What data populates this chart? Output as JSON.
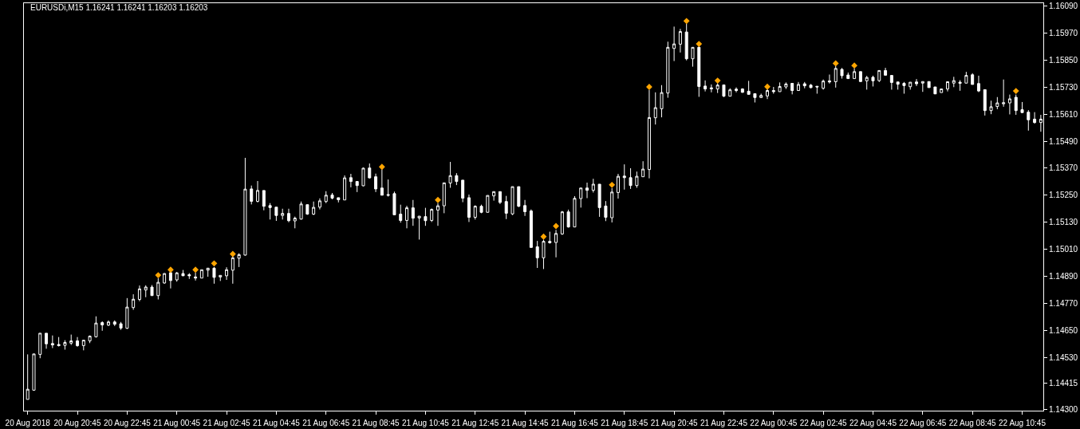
{
  "chart_data": {
    "type": "candlestick",
    "title": "EURUSDi,M15 1.16241 1.16241 1.16203 1.16203",
    "color": "#ffffff",
    "x": [
      "2018-08-20T18:45",
      "2018-08-20T19:00",
      "2018-08-20T19:15",
      "2018-08-20T19:30",
      "2018-08-20T19:45",
      "2018-08-20T20:00",
      "2018-08-20T20:15",
      "2018-08-20T20:30",
      "2018-08-20T20:45",
      "2018-08-20T21:00",
      "2018-08-20T21:15",
      "2018-08-20T21:30",
      "2018-08-20T21:45",
      "2018-08-20T22:00",
      "2018-08-20T22:15",
      "2018-08-20T22:30",
      "2018-08-20T22:45",
      "2018-08-20T23:00",
      "2018-08-20T23:15",
      "2018-08-20T23:30",
      "2018-08-20T23:45",
      "2018-08-21T00:00",
      "2018-08-21T00:15",
      "2018-08-21T00:30",
      "2018-08-21T00:45",
      "2018-08-21T01:00",
      "2018-08-21T01:15",
      "2018-08-21T01:30",
      "2018-08-21T01:45",
      "2018-08-21T02:00",
      "2018-08-21T02:15",
      "2018-08-21T02:30",
      "2018-08-21T02:45",
      "2018-08-21T03:00",
      "2018-08-21T03:15",
      "2018-08-21T03:30",
      "2018-08-21T03:45",
      "2018-08-21T04:00",
      "2018-08-21T04:15",
      "2018-08-21T04:30",
      "2018-08-21T04:45",
      "2018-08-21T05:00",
      "2018-08-21T05:15",
      "2018-08-21T05:30",
      "2018-08-21T05:45",
      "2018-08-21T06:00",
      "2018-08-21T06:15",
      "2018-08-21T06:30",
      "2018-08-21T06:45",
      "2018-08-21T07:00",
      "2018-08-21T07:15",
      "2018-08-21T07:30",
      "2018-08-21T07:45",
      "2018-08-21T08:00",
      "2018-08-21T08:15",
      "2018-08-21T08:30",
      "2018-08-21T08:45",
      "2018-08-21T09:00",
      "2018-08-21T09:15",
      "2018-08-21T09:30",
      "2018-08-21T09:45",
      "2018-08-21T10:00",
      "2018-08-21T10:15",
      "2018-08-21T10:30",
      "2018-08-21T10:45",
      "2018-08-21T11:00",
      "2018-08-21T11:15",
      "2018-08-21T11:30",
      "2018-08-21T11:45",
      "2018-08-21T12:00",
      "2018-08-21T12:15",
      "2018-08-21T12:30",
      "2018-08-21T12:45",
      "2018-08-21T13:00",
      "2018-08-21T13:15",
      "2018-08-21T13:30",
      "2018-08-21T13:45",
      "2018-08-21T14:00",
      "2018-08-21T14:15",
      "2018-08-21T14:30",
      "2018-08-21T14:45",
      "2018-08-21T15:00",
      "2018-08-21T15:15",
      "2018-08-21T15:30",
      "2018-08-21T15:45",
      "2018-08-21T16:00",
      "2018-08-21T16:15",
      "2018-08-21T16:30",
      "2018-08-21T16:45",
      "2018-08-21T17:00",
      "2018-08-21T17:15",
      "2018-08-21T17:30",
      "2018-08-21T17:45",
      "2018-08-21T18:00",
      "2018-08-21T18:15",
      "2018-08-21T18:30",
      "2018-08-21T18:45",
      "2018-08-21T19:00",
      "2018-08-21T19:15",
      "2018-08-21T19:30",
      "2018-08-21T19:45",
      "2018-08-21T20:00",
      "2018-08-21T20:15",
      "2018-08-21T20:30",
      "2018-08-21T20:45",
      "2018-08-21T21:00",
      "2018-08-21T21:15",
      "2018-08-21T21:30",
      "2018-08-21T21:45",
      "2018-08-21T22:00",
      "2018-08-21T22:15",
      "2018-08-21T22:30",
      "2018-08-21T22:45",
      "2018-08-21T23:00",
      "2018-08-21T23:15",
      "2018-08-21T23:30",
      "2018-08-21T23:45",
      "2018-08-22T00:00",
      "2018-08-22T00:15",
      "2018-08-22T00:30",
      "2018-08-22T00:45",
      "2018-08-22T01:00",
      "2018-08-22T01:15",
      "2018-08-22T01:30",
      "2018-08-22T01:45",
      "2018-08-22T02:00",
      "2018-08-22T02:15",
      "2018-08-22T02:30",
      "2018-08-22T02:45",
      "2018-08-22T03:00",
      "2018-08-22T03:15",
      "2018-08-22T03:30",
      "2018-08-22T03:45",
      "2018-08-22T04:00",
      "2018-08-22T04:15",
      "2018-08-22T04:30",
      "2018-08-22T04:45",
      "2018-08-22T05:00",
      "2018-08-22T05:15",
      "2018-08-22T05:30",
      "2018-08-22T05:45",
      "2018-08-22T06:00",
      "2018-08-22T06:15",
      "2018-08-22T06:30",
      "2018-08-22T06:45",
      "2018-08-22T07:00",
      "2018-08-22T07:15",
      "2018-08-22T07:30",
      "2018-08-22T07:45",
      "2018-08-22T08:00",
      "2018-08-22T08:15",
      "2018-08-22T08:30",
      "2018-08-22T08:45",
      "2018-08-22T09:00",
      "2018-08-22T09:15",
      "2018-08-22T09:30",
      "2018-08-22T09:45",
      "2018-08-22T10:00",
      "2018-08-22T10:15",
      "2018-08-22T10:30",
      "2018-08-22T10:45",
      "2018-08-22T11:00",
      "2018-08-22T11:15",
      "2018-08-22T11:30"
    ],
    "ohlc": [
      [
        1.14343,
        1.14543,
        1.14343,
        1.14388
      ],
      [
        1.14384,
        1.14545,
        1.14382,
        1.14545
      ],
      [
        1.14543,
        1.14637,
        1.14526,
        1.14637
      ],
      [
        1.14637,
        1.14637,
        1.14568,
        1.1459
      ],
      [
        1.14591,
        1.14627,
        1.14571,
        1.14585
      ],
      [
        1.14587,
        1.1462,
        1.14578,
        1.14582
      ],
      [
        1.14583,
        1.14606,
        1.14564,
        1.14596
      ],
      [
        1.14593,
        1.14631,
        1.14585,
        1.14603
      ],
      [
        1.14603,
        1.1462,
        1.14577,
        1.14582
      ],
      [
        1.14582,
        1.14606,
        1.14561,
        1.14606
      ],
      [
        1.14603,
        1.14627,
        1.14593,
        1.14624
      ],
      [
        1.14621,
        1.14712,
        1.14618,
        1.14682
      ],
      [
        1.14684,
        1.1469,
        1.14648,
        1.14674
      ],
      [
        1.14673,
        1.14694,
        1.14669,
        1.14687
      ],
      [
        1.14687,
        1.14694,
        1.14669,
        1.14677
      ],
      [
        1.14679,
        1.14687,
        1.14652,
        1.1466
      ],
      [
        1.14659,
        1.14793,
        1.14656,
        1.14753
      ],
      [
        1.14751,
        1.1481,
        1.14741,
        1.14788
      ],
      [
        1.14787,
        1.14849,
        1.14779,
        1.14834
      ],
      [
        1.14829,
        1.1485,
        1.14797,
        1.14842
      ],
      [
        1.14842,
        1.14851,
        1.14804,
        1.14804
      ],
      [
        1.14804,
        1.14881,
        1.14787,
        1.14863
      ],
      [
        1.1486,
        1.14904,
        1.14857,
        1.14902
      ],
      [
        1.14906,
        1.14913,
        1.14836,
        1.14871
      ],
      [
        1.14874,
        1.14909,
        1.14866,
        1.14905
      ],
      [
        1.14902,
        1.14918,
        1.14892,
        1.14892
      ],
      [
        1.14897,
        1.14904,
        1.14878,
        1.14892
      ],
      [
        1.14887,
        1.14906,
        1.14871,
        1.14882
      ],
      [
        1.14882,
        1.14919,
        1.14882,
        1.14919
      ],
      [
        1.14917,
        1.14926,
        1.14888,
        1.14926
      ],
      [
        1.14926,
        1.14931,
        1.14857,
        1.14885
      ],
      [
        1.14887,
        1.14894,
        1.14869,
        1.14894
      ],
      [
        1.14892,
        1.1493,
        1.14874,
        1.14919
      ],
      [
        1.14917,
        1.14979,
        1.14857,
        1.14972
      ],
      [
        1.1497,
        1.14992,
        1.14931,
        1.14986
      ],
      [
        1.14984,
        1.15416,
        1.14982,
        1.15277
      ],
      [
        1.15278,
        1.15293,
        1.15209,
        1.15223
      ],
      [
        1.15223,
        1.15313,
        1.15218,
        1.15271
      ],
      [
        1.15271,
        1.15271,
        1.15183,
        1.15201
      ],
      [
        1.15204,
        1.15215,
        1.15142,
        1.15195
      ],
      [
        1.15197,
        1.15197,
        1.15136,
        1.1516
      ],
      [
        1.1516,
        1.1519,
        1.15142,
        1.15169
      ],
      [
        1.15169,
        1.1519,
        1.1513,
        1.15137
      ],
      [
        1.15136,
        1.15155,
        1.15103,
        1.15148
      ],
      [
        1.15144,
        1.15222,
        1.15142,
        1.15211
      ],
      [
        1.15208,
        1.15208,
        1.15163,
        1.15166
      ],
      [
        1.15166,
        1.15222,
        1.15162,
        1.15196
      ],
      [
        1.15197,
        1.15236,
        1.15187,
        1.15225
      ],
      [
        1.15222,
        1.15268,
        1.15215,
        1.1525
      ],
      [
        1.15251,
        1.1526,
        1.15232,
        1.15237
      ],
      [
        1.15239,
        1.15239,
        1.15218,
        1.1523
      ],
      [
        1.15229,
        1.15338,
        1.15229,
        1.15327
      ],
      [
        1.15328,
        1.15345,
        1.15285,
        1.15311
      ],
      [
        1.15311,
        1.15313,
        1.15264,
        1.15293
      ],
      [
        1.15292,
        1.15373,
        1.1529,
        1.1537
      ],
      [
        1.15371,
        1.15391,
        1.15324,
        1.15327
      ],
      [
        1.15332,
        1.15346,
        1.15264,
        1.15278
      ],
      [
        1.15282,
        1.15365,
        1.1525,
        1.1525
      ],
      [
        1.15253,
        1.1532,
        1.15244,
        1.1525
      ],
      [
        1.15257,
        1.15266,
        1.15163,
        1.15163
      ],
      [
        1.15166,
        1.15208,
        1.15128,
        1.15138
      ],
      [
        1.15138,
        1.15203,
        1.15103,
        1.15194
      ],
      [
        1.15194,
        1.15229,
        1.15114,
        1.15148
      ],
      [
        1.15149,
        1.15157,
        1.15053,
        1.15157
      ],
      [
        1.15155,
        1.15194,
        1.15114,
        1.15137
      ],
      [
        1.15138,
        1.15191,
        1.15131,
        1.15187
      ],
      [
        1.15184,
        1.15215,
        1.15114,
        1.15203
      ],
      [
        1.15203,
        1.15305,
        1.1517,
        1.15305
      ],
      [
        1.15304,
        1.15398,
        1.15283,
        1.15337
      ],
      [
        1.15337,
        1.15348,
        1.15295,
        1.15311
      ],
      [
        1.15317,
        1.15317,
        1.15219,
        1.15237
      ],
      [
        1.15239,
        1.15253,
        1.15131,
        1.15152
      ],
      [
        1.15152,
        1.15205,
        1.15142,
        1.15201
      ],
      [
        1.15201,
        1.15208,
        1.1517,
        1.15174
      ],
      [
        1.15174,
        1.15249,
        1.15174,
        1.15249
      ],
      [
        1.15247,
        1.15266,
        1.15226,
        1.15266
      ],
      [
        1.15266,
        1.15266,
        1.15211,
        1.15218
      ],
      [
        1.15222,
        1.15247,
        1.15144,
        1.1517
      ],
      [
        1.15167,
        1.15288,
        1.15162,
        1.15288
      ],
      [
        1.15288,
        1.15288,
        1.15197,
        1.15201
      ],
      [
        1.15204,
        1.15229,
        1.15158,
        1.15177
      ],
      [
        1.1518,
        1.15187,
        1.15018,
        1.15018
      ],
      [
        1.15021,
        1.15047,
        1.14927,
        1.14972
      ],
      [
        1.14972,
        1.15053,
        1.14922,
        1.15045
      ],
      [
        1.15045,
        1.15088,
        1.15035,
        1.15039
      ],
      [
        1.1504,
        1.15096,
        1.14974,
        1.1508
      ],
      [
        1.15078,
        1.1518,
        1.15074,
        1.15176
      ],
      [
        1.15176,
        1.15186,
        1.15106,
        1.15109
      ],
      [
        1.15109,
        1.15246,
        1.15109,
        1.15236
      ],
      [
        1.15235,
        1.15282,
        1.15195,
        1.15282
      ],
      [
        1.15282,
        1.15306,
        1.15237,
        1.15272
      ],
      [
        1.15272,
        1.15323,
        1.15262,
        1.15299
      ],
      [
        1.15299,
        1.15299,
        1.15154,
        1.15195
      ],
      [
        1.15202,
        1.15224,
        1.15135,
        1.15152
      ],
      [
        1.1515,
        1.15281,
        1.15129,
        1.15264
      ],
      [
        1.15262,
        1.15345,
        1.15235,
        1.15334
      ],
      [
        1.15335,
        1.15387,
        1.15275,
        1.15328
      ],
      [
        1.15328,
        1.1537,
        1.15278,
        1.15293
      ],
      [
        1.15293,
        1.15355,
        1.15283,
        1.15334
      ],
      [
        1.15332,
        1.15401,
        1.15332,
        1.15366
      ],
      [
        1.15364,
        1.15718,
        1.15325,
        1.15595
      ],
      [
        1.15594,
        1.15707,
        1.15564,
        1.15639
      ],
      [
        1.15634,
        1.15739,
        1.15596,
        1.15706
      ],
      [
        1.15704,
        1.15932,
        1.15683,
        1.15907
      ],
      [
        1.15902,
        1.15999,
        1.15846,
        1.15922
      ],
      [
        1.15921,
        1.15989,
        1.15884,
        1.15977
      ],
      [
        1.15975,
        1.16012,
        1.15849,
        1.15856
      ],
      [
        1.15856,
        1.15907,
        1.15821,
        1.15907
      ],
      [
        1.15907,
        1.15915,
        1.15687,
        1.15733
      ],
      [
        1.15735,
        1.1576,
        1.15711,
        1.15722
      ],
      [
        1.15722,
        1.15742,
        1.15707,
        1.15727
      ],
      [
        1.15722,
        1.15747,
        1.15704,
        1.15739
      ],
      [
        1.1574,
        1.1574,
        1.15686,
        1.1569
      ],
      [
        1.1569,
        1.15725,
        1.1569,
        1.15718
      ],
      [
        1.15721,
        1.15729,
        1.15707,
        1.15715
      ],
      [
        1.15722,
        1.15725,
        1.15705,
        1.15707
      ],
      [
        1.15712,
        1.15758,
        1.15698,
        1.15698
      ],
      [
        1.15701,
        1.15701,
        1.15662,
        1.15684
      ],
      [
        1.15684,
        1.15701,
        1.15682,
        1.15693
      ],
      [
        1.15691,
        1.15725,
        1.15677,
        1.15715
      ],
      [
        1.15715,
        1.15731,
        1.15701,
        1.1571
      ],
      [
        1.1571,
        1.15751,
        1.1571,
        1.15733
      ],
      [
        1.15731,
        1.15751,
        1.15722,
        1.15744
      ],
      [
        1.15747,
        1.15747,
        1.15698,
        1.15715
      ],
      [
        1.15715,
        1.15753,
        1.15715,
        1.15742
      ],
      [
        1.15745,
        1.15753,
        1.15725,
        1.15736
      ],
      [
        1.15739,
        1.15744,
        1.15725,
        1.15728
      ],
      [
        1.15734,
        1.15734,
        1.15701,
        1.15731
      ],
      [
        1.15725,
        1.15764,
        1.15719,
        1.15757
      ],
      [
        1.15758,
        1.15786,
        1.15746,
        1.15753
      ],
      [
        1.15754,
        1.15826,
        1.15728,
        1.15813
      ],
      [
        1.15809,
        1.15815,
        1.15768,
        1.15781
      ],
      [
        1.15784,
        1.15795,
        1.15768,
        1.15768
      ],
      [
        1.15768,
        1.15814,
        1.15768,
        1.15799
      ],
      [
        1.15799,
        1.15799,
        1.15753,
        1.15755
      ],
      [
        1.15758,
        1.1578,
        1.15719,
        1.15773
      ],
      [
        1.15774,
        1.15781,
        1.15733,
        1.15758
      ],
      [
        1.15759,
        1.15804,
        1.15753,
        1.15804
      ],
      [
        1.15804,
        1.15816,
        1.15783,
        1.15783
      ],
      [
        1.15782,
        1.15782,
        1.15719,
        1.15751
      ],
      [
        1.15753,
        1.15753,
        1.15719,
        1.15743
      ],
      [
        1.15747,
        1.15753,
        1.15701,
        1.15737
      ],
      [
        1.15732,
        1.15752,
        1.15719,
        1.15752
      ],
      [
        1.15753,
        1.15766,
        1.15735,
        1.15745
      ],
      [
        1.15748,
        1.15755,
        1.15709,
        1.15755
      ],
      [
        1.15755,
        1.15755,
        1.15728,
        1.15728
      ],
      [
        1.15731,
        1.15731,
        1.157,
        1.157
      ],
      [
        1.15706,
        1.15722,
        1.15706,
        1.15722
      ],
      [
        1.15722,
        1.15754,
        1.15711,
        1.15754
      ],
      [
        1.15748,
        1.15776,
        1.1573,
        1.15759
      ],
      [
        1.15752,
        1.15761,
        1.15714,
        1.15747
      ],
      [
        1.15748,
        1.15798,
        1.15748,
        1.15782
      ],
      [
        1.15785,
        1.15792,
        1.15742,
        1.15742
      ],
      [
        1.15746,
        1.15781,
        1.15708,
        1.15713
      ],
      [
        1.15719,
        1.15719,
        1.15604,
        1.15626
      ],
      [
        1.15626,
        1.1567,
        1.1561,
        1.15643
      ],
      [
        1.15644,
        1.15686,
        1.15632,
        1.1566
      ],
      [
        1.15656,
        1.15764,
        1.15643,
        1.15661
      ],
      [
        1.1566,
        1.15697,
        1.15609,
        1.15678
      ],
      [
        1.15685,
        1.15697,
        1.15607,
        1.15626
      ],
      [
        1.1563,
        1.15664,
        1.15617,
        1.15617
      ],
      [
        1.15619,
        1.15628,
        1.15537,
        1.15585
      ],
      [
        1.15588,
        1.15619,
        1.15568,
        1.15573
      ],
      [
        1.15573,
        1.15607,
        1.15532,
        1.15588
      ]
    ],
    "series": [
      {
        "type": "scatter",
        "marker": "diamond",
        "color": "#ffa500",
        "x": [
          "2018-08-21T00:00",
          "2018-08-21T00:30",
          "2018-08-21T01:30",
          "2018-08-21T02:15",
          "2018-08-21T03:00",
          "2018-08-21T09:00",
          "2018-08-21T11:15",
          "2018-08-21T15:30",
          "2018-08-21T16:00",
          "2018-08-21T18:15",
          "2018-08-21T19:45",
          "2018-08-21T21:15",
          "2018-08-21T21:45",
          "2018-08-21T22:30",
          "2018-08-22T00:30",
          "2018-08-22T03:15",
          "2018-08-22T04:00",
          "2018-08-22T10:30"
        ],
        "values": [
          1.14895,
          1.14919,
          1.14919,
          1.14947,
          1.14989,
          1.15376,
          1.15229,
          1.15066,
          1.15113,
          1.15296,
          1.15731,
          1.16024,
          1.15922,
          1.15759,
          1.15732,
          1.15836,
          1.15826,
          1.15713
        ]
      }
    ],
    "xlim": [
      "2018-08-20T18:36",
      "2018-08-22T11:36"
    ],
    "xticks": [
      {
        "value": "2018-08-20T18:45",
        "label": "20 Aug 2018"
      },
      {
        "value": "2018-08-20T20:45",
        "label": "20 Aug 20:45"
      },
      {
        "value": "2018-08-20T22:45",
        "label": "20 Aug 22:45"
      },
      {
        "value": "2018-08-21T00:45",
        "label": "21 Aug 00:45"
      },
      {
        "value": "2018-08-21T02:45",
        "label": "21 Aug 02:45"
      },
      {
        "value": "2018-08-21T04:45",
        "label": "21 Aug 04:45"
      },
      {
        "value": "2018-08-21T06:45",
        "label": "21 Aug 06:45"
      },
      {
        "value": "2018-08-21T08:45",
        "label": "21 Aug 08:45"
      },
      {
        "value": "2018-08-21T10:45",
        "label": "21 Aug 10:45"
      },
      {
        "value": "2018-08-21T12:45",
        "label": "21 Aug 12:45"
      },
      {
        "value": "2018-08-21T14:45",
        "label": "21 Aug 14:45"
      },
      {
        "value": "2018-08-21T16:45",
        "label": "21 Aug 16:45"
      },
      {
        "value": "2018-08-21T18:45",
        "label": "21 Aug 18:45"
      },
      {
        "value": "2018-08-21T20:45",
        "label": "21 Aug 20:45"
      },
      {
        "value": "2018-08-21T22:45",
        "label": "21 Aug 22:45"
      },
      {
        "value": "2018-08-22T00:45",
        "label": "22 Aug 00:45"
      },
      {
        "value": "2018-08-22T02:45",
        "label": "22 Aug 02:45"
      },
      {
        "value": "2018-08-22T04:45",
        "label": "22 Aug 04:45"
      },
      {
        "value": "2018-08-22T06:45",
        "label": "22 Aug 06:45"
      },
      {
        "value": "2018-08-22T08:45",
        "label": "22 Aug 08:45"
      },
      {
        "value": "2018-08-22T10:45",
        "label": "22 Aug 10:45"
      }
    ],
    "ylim": [
      1.14293,
      1.16103
    ],
    "yticks": [
      {
        "value": 1.1609,
        "label": "1.16090"
      },
      {
        "value": 1.1597,
        "label": "1.15970"
      },
      {
        "value": 1.1585,
        "label": "1.15850"
      },
      {
        "value": 1.1573,
        "label": "1.15730"
      },
      {
        "value": 1.1561,
        "label": "1.15610"
      },
      {
        "value": 1.1549,
        "label": "1.15490"
      },
      {
        "value": 1.1537,
        "label": "1.15370"
      },
      {
        "value": 1.1525,
        "label": "1.15250"
      },
      {
        "value": 1.1513,
        "label": "1.15130"
      },
      {
        "value": 1.1501,
        "label": "1.15010"
      },
      {
        "value": 1.1489,
        "label": "1.14890"
      },
      {
        "value": 1.1477,
        "label": "1.14770"
      },
      {
        "value": 1.1465,
        "label": "1.14650"
      },
      {
        "value": 1.1453,
        "label": "1.14530"
      },
      {
        "value": 1.14415,
        "label": "1.14415"
      },
      {
        "value": 1.143,
        "label": "1.14300"
      }
    ]
  }
}
